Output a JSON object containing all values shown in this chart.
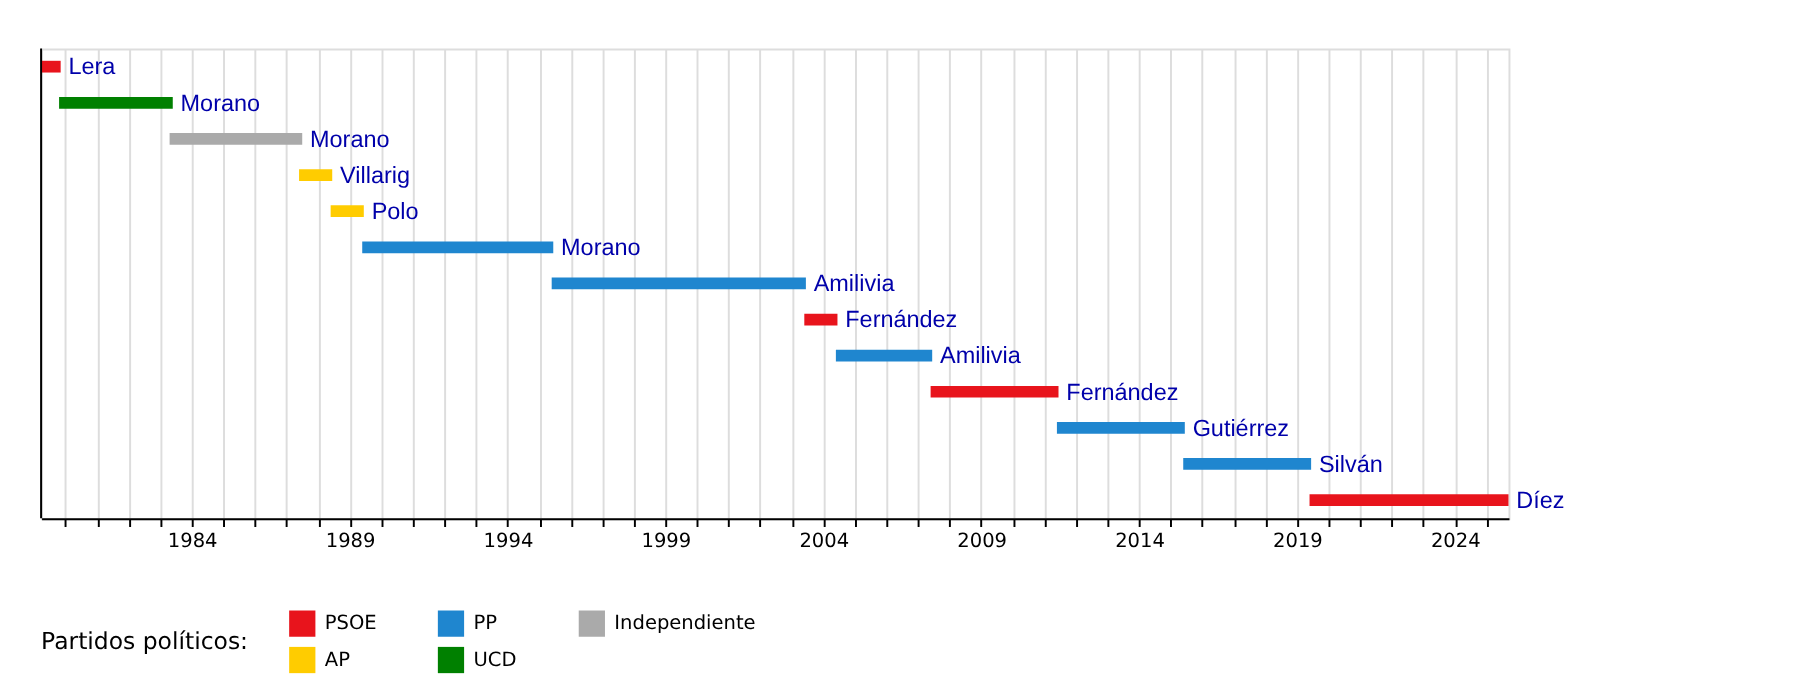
{
  "chart_data": {
    "type": "bar",
    "orientation": "horizontal",
    "legend_title": "Partidos políticos:",
    "legend": "bottom",
    "grid": "x",
    "categories": [
      "Lera",
      "Morano",
      "Morano",
      "Villarig",
      "Polo",
      "Morano",
      "Amilivia",
      "Fernández",
      "Amilivia",
      "Fernández",
      "Gutiérrez",
      "Silván",
      "Díez"
    ],
    "series": [
      {
        "name": "PSOE",
        "color": "#e8141c",
        "base": [
          1979.23,
          null,
          null,
          null,
          null,
          null,
          null,
          2003.4,
          null,
          2007.4,
          null,
          null,
          2019.4
        ],
        "values": [
          0.62,
          null,
          null,
          null,
          null,
          null,
          null,
          1.05,
          null,
          4.05,
          null,
          null,
          6.3
        ]
      },
      {
        "name": "PP",
        "color": "#1f86cf",
        "base": [
          null,
          null,
          null,
          null,
          null,
          1989.4,
          1995.4,
          null,
          2004.4,
          null,
          2011.4,
          2015.4,
          null
        ],
        "values": [
          null,
          null,
          null,
          null,
          null,
          6.05,
          8.05,
          null,
          3.05,
          null,
          4.05,
          4.05,
          null
        ]
      },
      {
        "name": "Independiente",
        "color": "#aaaaaa",
        "base": [
          null,
          null,
          1983.3,
          null,
          null,
          null,
          null,
          null,
          null,
          null,
          null,
          null,
          null
        ],
        "values": [
          null,
          null,
          4.2,
          null,
          null,
          null,
          null,
          null,
          null,
          null,
          null,
          null,
          null
        ]
      },
      {
        "name": "AP",
        "color": "#ffcc00",
        "base": [
          null,
          null,
          null,
          1987.4,
          1988.4,
          null,
          null,
          null,
          null,
          null,
          null,
          null,
          null
        ],
        "values": [
          null,
          null,
          null,
          1.05,
          1.05,
          null,
          null,
          null,
          null,
          null,
          null,
          null,
          null
        ]
      },
      {
        "name": "UCD",
        "color": "#008000",
        "base": [
          null,
          1979.8,
          null,
          null,
          null,
          null,
          null,
          null,
          null,
          null,
          null,
          null,
          null
        ],
        "values": [
          null,
          3.6,
          null,
          null,
          null,
          null,
          null,
          null,
          null,
          null,
          null,
          null,
          null
        ]
      }
    ],
    "xlim": [
      1979.23,
      2025.7
    ],
    "xticks": [
      {
        "value": 1980,
        "label": null
      },
      {
        "value": 1981,
        "label": null
      },
      {
        "value": 1982,
        "label": null
      },
      {
        "value": 1983,
        "label": null
      },
      1984,
      {
        "value": 1985,
        "label": null
      },
      {
        "value": 1986,
        "label": null
      },
      {
        "value": 1987,
        "label": null
      },
      {
        "value": 1988,
        "label": null
      },
      1989,
      {
        "value": 1990,
        "label": null
      },
      {
        "value": 1991,
        "label": null
      },
      {
        "value": 1992,
        "label": null
      },
      {
        "value": 1993,
        "label": null
      },
      1994,
      {
        "value": 1995,
        "label": null
      },
      {
        "value": 1996,
        "label": null
      },
      {
        "value": 1997,
        "label": null
      },
      {
        "value": 1998,
        "label": null
      },
      1999,
      {
        "value": 2000,
        "label": null
      },
      {
        "value": 2001,
        "label": null
      },
      {
        "value": 2002,
        "label": null
      },
      {
        "value": 2003,
        "label": null
      },
      2004,
      {
        "value": 2005,
        "label": null
      },
      {
        "value": 2006,
        "label": null
      },
      {
        "value": 2007,
        "label": null
      },
      {
        "value": 2008,
        "label": null
      },
      2009,
      {
        "value": 2010,
        "label": null
      },
      {
        "value": 2011,
        "label": null
      },
      {
        "value": 2012,
        "label": null
      },
      {
        "value": 2013,
        "label": null
      },
      2014,
      {
        "value": 2015,
        "label": null
      },
      {
        "value": 2016,
        "label": null
      },
      {
        "value": 2017,
        "label": null
      },
      {
        "value": 2018,
        "label": null
      },
      2019,
      {
        "value": 2020,
        "label": null
      },
      {
        "value": 2021,
        "label": null
      },
      {
        "value": 2022,
        "label": null
      },
      {
        "value": 2023,
        "label": null
      },
      2024,
      {
        "value": 2025,
        "label": null
      }
    ]
  }
}
